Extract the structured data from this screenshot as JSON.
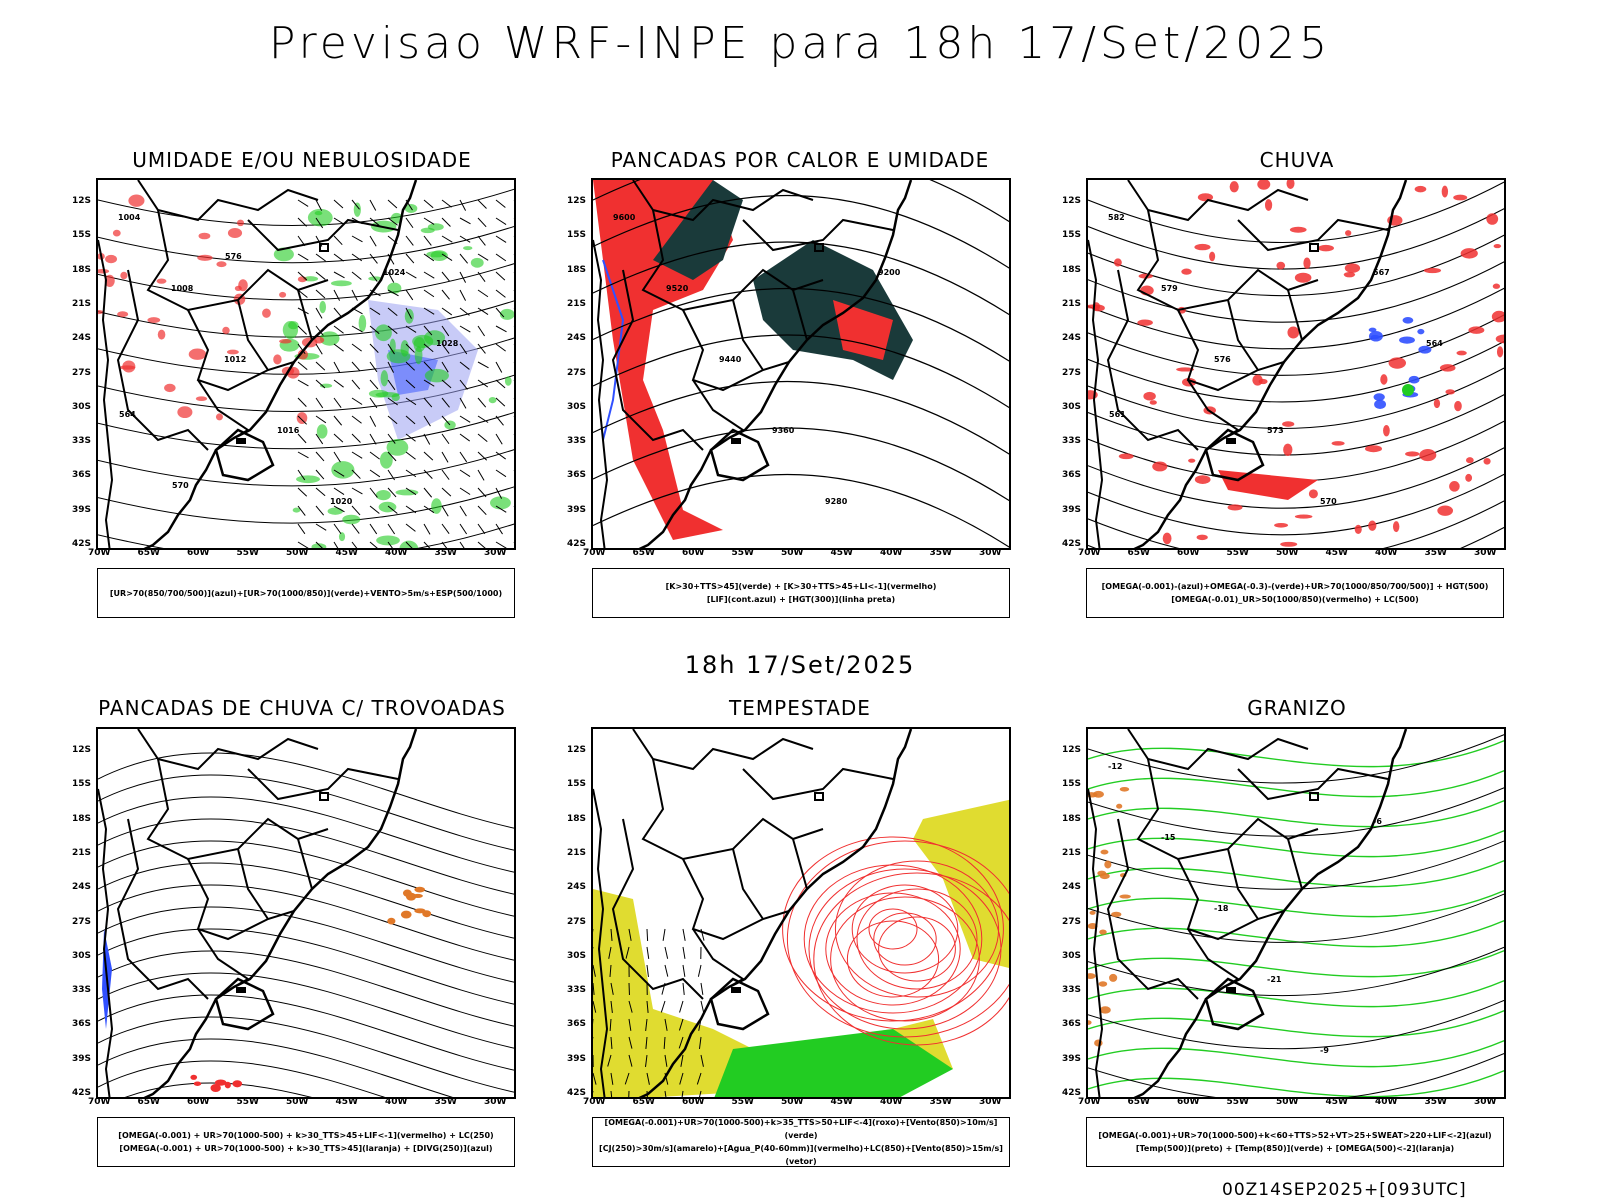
{
  "title": "Previsao WRF-INPE  para 18h 17/Set/2025",
  "subtitle_time": "18h 17/Set/2025",
  "footer": "00Z14SEP2025+[093UTC]",
  "lat_labels": [
    "12S",
    "15S",
    "18S",
    "21S",
    "24S",
    "27S",
    "30S",
    "33S",
    "36S",
    "39S",
    "42S"
  ],
  "lon_labels": [
    "70W",
    "65W",
    "60W",
    "55W",
    "50W",
    "45W",
    "40W",
    "35W",
    "30W"
  ],
  "panels": [
    {
      "title": "UMIDADE E/OU NEBULOSIDADE",
      "legend": [
        "[UR>70(850/700/500)](azul)+[UR>70(1000/850)](verde)+VENTO>5m/s+ESP(500/1000)"
      ],
      "contour_labels": [
        "1004",
        "1008",
        "1012",
        "1016",
        "1020",
        "1024",
        "1028",
        "564",
        "570",
        "576"
      ]
    },
    {
      "title": "PANCADAS POR CALOR E UMIDADE",
      "legend": [
        "[K>30+TTS>45](verde) + [K>30+TTS>45+LI<-1](vermelho)",
        "[LIF](cont.azul) + [HGT(300)](linha preta)"
      ],
      "contour_labels": [
        "9600",
        "9520",
        "9440",
        "9360",
        "9280",
        "9200"
      ]
    },
    {
      "title": "CHUVA",
      "legend": [
        "[OMEGA(-0.001)-(azul)+OMEGA(-0.3)-(verde)+UR>70(1000/850/700/500)] + HGT(500)",
        "[OMEGA(-0.01)_UR>50(1000/850)(vermelho) + LC(500)"
      ],
      "contour_labels": [
        "582",
        "579",
        "576",
        "573",
        "570",
        "567",
        "564",
        "561"
      ]
    },
    {
      "title": "PANCADAS DE CHUVA C/ TROVOADAS",
      "legend": [
        "[OMEGA(-0.001) + UR>70(1000-500) + k>30_TTS>45+LIF<-1](vermelho) + LC(250)",
        "[OMEGA(-0.001) + UR>70(1000-500) + k>30_TTS>45](laranja) + [DIVG(250)](azul)"
      ],
      "contour_labels": []
    },
    {
      "title": "TEMPESTADE",
      "legend": [
        "[OMEGA(-0.001)+UR>70(1000-500)+k>35_TTS>50+LIF<-4](roxo)+[Vento(850)>10m/s](verde)",
        "[CJ(250)>30m/s](amarelo)+[Agua_P(40-60mm)](vermelho)+LC(850)+[Vento(850)>15m/s](vetor)"
      ],
      "contour_labels": []
    },
    {
      "title": "GRANIZO",
      "legend": [
        "[OMEGA(-0.001)+UR>70(1000-500)+k<60+TTS>52+VT>25+SWEAT>220+LIF<-2](azul)",
        "[Temp(500)](preto) + [Temp(850)](verde) + [OMEGA(500)<-2](laranja)"
      ],
      "contour_labels": [
        "-12",
        "-15",
        "-18",
        "-21",
        "-9",
        "-6"
      ]
    }
  ],
  "colors": {
    "red": "#f03030",
    "blue": "#3050ff",
    "green": "#22cc22",
    "yellow": "#e0dc30",
    "darkteal": "#1a3a3a",
    "orange": "#e07828",
    "lavender": "#9aa0f0"
  }
}
